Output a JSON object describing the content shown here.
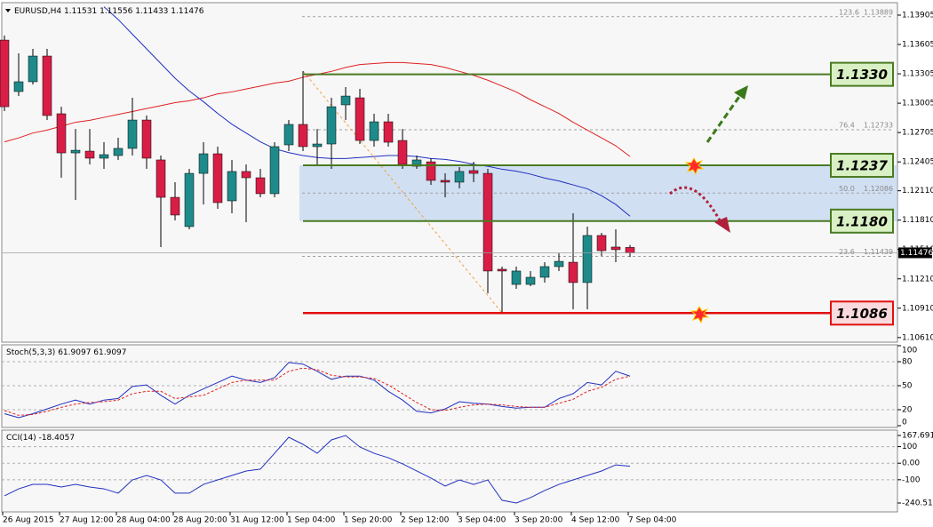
{
  "chart_data": [
    {
      "type": "candlestick",
      "symbol": "EURUSD,H4",
      "categories": [
        "26 Aug 2015",
        null,
        null,
        null,
        "27 Aug 12:00",
        null,
        null,
        null,
        "28 Aug 04:00",
        null,
        null,
        null,
        "28 Aug 20:00",
        null,
        null,
        null,
        "31 Aug 12:00",
        null,
        null,
        null,
        "1 Sep 04:00",
        null,
        null,
        null,
        "1 Sep 20:00",
        null,
        null,
        null,
        "2 Sep 12:00",
        null,
        null,
        null,
        "3 Sep 04:00",
        null,
        null,
        null,
        "3 Sep 20:00",
        null,
        null,
        null,
        "4 Sep 12:00",
        null,
        null,
        null,
        "7 Sep 04:00"
      ],
      "open": [
        1.1365,
        1.13124,
        1.13224,
        1.13487,
        1.12897,
        1.12497,
        1.12515,
        1.12443,
        1.1247,
        1.12543,
        1.12833,
        1.12425,
        1.12043,
        1.11744,
        1.12288,
        1.12488,
        1.12007,
        1.12307,
        1.12243,
        1.1208,
        1.12579,
        1.12788,
        1.12561,
        1.12588,
        1.12988,
        1.1306,
        1.12624,
        1.12815,
        1.12624,
        1.12361,
        1.12406,
        1.12216,
        1.12198,
        1.12316,
        1.12288,
        1.11308,
        1.11153,
        1.11153,
        1.11226,
        1.11335,
        1.1138,
        1.11172,
        1.11653,
        1.11535,
        1.11531
      ],
      "high": [
        1.13696,
        1.13514,
        1.1356,
        1.1356,
        1.12969,
        1.12742,
        1.12742,
        1.12606,
        1.12652,
        1.1306,
        1.12879,
        1.1247,
        1.12198,
        1.12334,
        1.12606,
        1.12561,
        1.12425,
        1.12379,
        1.12334,
        1.12606,
        1.12833,
        1.13333,
        1.12742,
        1.1306,
        1.13169,
        1.13151,
        1.12897,
        1.12897,
        1.12742,
        1.1247,
        1.12443,
        1.12288,
        1.12352,
        1.12406,
        1.12334,
        1.11335,
        1.11335,
        1.1129,
        1.1138,
        1.11471,
        1.1188,
        1.11744,
        1.1168,
        1.11716,
        1.11556
      ],
      "low": [
        1.12924,
        1.13078,
        1.13196,
        1.12833,
        1.12243,
        1.12016,
        1.12379,
        1.12334,
        1.12425,
        1.1247,
        1.12334,
        1.11535,
        1.11807,
        1.11716,
        1.11971,
        1.11925,
        1.1188,
        1.11789,
        1.12043,
        1.12043,
        1.12515,
        1.12515,
        1.12379,
        1.12334,
        1.12833,
        1.12588,
        1.12561,
        1.12561,
        1.12334,
        1.12334,
        1.1217,
        1.12043,
        1.12134,
        1.12198,
        1.11063,
        1.10863,
        1.11108,
        1.11135,
        1.11172,
        1.1129,
        1.10899,
        1.10899,
        1.11444,
        1.1138,
        1.11433
      ],
      "close": [
        1.12969,
        1.13224,
        1.13487,
        1.12879,
        1.12497,
        1.12524,
        1.12443,
        1.12479,
        1.12543,
        1.12833,
        1.12443,
        1.12043,
        1.11862,
        1.12288,
        1.12488,
        1.11989,
        1.12307,
        1.12243,
        1.1208,
        1.12561,
        1.12788,
        1.12561,
        1.12588,
        1.12969,
        1.13078,
        1.12624,
        1.12815,
        1.12606,
        1.12379,
        1.12425,
        1.12216,
        1.12198,
        1.12307,
        1.12288,
        1.1129,
        1.1129,
        1.1129,
        1.11226,
        1.11335,
        1.11389,
        1.11172,
        1.11653,
        1.11498,
        1.11508,
        1.11476
      ],
      "up_color": "#1f8a8a",
      "down_color": "#d81e46",
      "series": [
        {
          "color": "#e02020",
          "values": [
            1.1261,
            1.1265,
            1.127,
            1.1273,
            1.1277,
            1.1281,
            1.1283,
            1.1286,
            1.1289,
            1.1292,
            1.1295,
            1.1298,
            1.1301,
            1.1303,
            1.1306,
            1.131,
            1.1312,
            1.1315,
            1.1318,
            1.1321,
            1.1323,
            1.1327,
            1.133,
            1.1333,
            1.1337,
            1.134,
            1.1341,
            1.1342,
            1.1342,
            1.1341,
            1.134,
            1.1337,
            1.1333,
            1.1329,
            1.1324,
            1.1318,
            1.1312,
            1.1304,
            1.1297,
            1.129,
            1.1281,
            1.1273,
            1.1265,
            1.1257,
            1.1246
          ]
        },
        {
          "color": "#2030c0",
          "values": [
            null,
            null,
            null,
            null,
            null,
            null,
            null,
            1.1399,
            1.1386,
            1.1371,
            1.1356,
            1.1341,
            1.1326,
            1.1313,
            1.1302,
            1.129,
            1.1279,
            1.127,
            1.1261,
            1.1254,
            1.125,
            1.1247,
            1.1245,
            1.1244,
            1.1244,
            1.1245,
            1.1246,
            1.1247,
            1.1247,
            1.1246,
            1.1244,
            1.1243,
            1.1241,
            1.1238,
            1.1236,
            1.1233,
            1.1231,
            1.1228,
            1.1224,
            1.1221,
            1.1217,
            1.1213,
            1.1206,
            1.1197,
            1.1185
          ]
        }
      ],
      "ylim": [
        1.10563,
        1.14014
      ],
      "yticks": [
        1.13905,
        1.13605,
        1.13305,
        1.13005,
        1.12705,
        1.12405,
        {
          "value": 1.1211,
          "label": "1.12110"
        },
        {
          "value": 1.1181,
          "label": "1.11810"
        },
        {
          "value": 1.1151,
          "label": "1.11510"
        },
        {
          "value": 1.1121,
          "label": "1.11210"
        },
        {
          "value": 1.1091,
          "label": "1.10910"
        },
        {
          "value": 1.1061,
          "label": "1.10610"
        }
      ],
      "levels": [
        {
          "value": 1.133,
          "label": "1.1330",
          "color": "#4a7a22",
          "fill": "#d9f0c4"
        },
        {
          "value": 1.1237,
          "label": "1.1237",
          "color": "#4a7a22",
          "fill": "#d9f0c4"
        },
        {
          "value": 1.118,
          "label": "1.1180",
          "color": "#4a7a22",
          "fill": "#d9f0c4"
        },
        {
          "value": 1.1086,
          "label": "1.1086",
          "color": "#e01010",
          "fill": "#fadadd"
        }
      ],
      "fibo": [
        {
          "level": "123.6",
          "price": 1.13889
        },
        {
          "level": "76.4",
          "price": 1.12733
        },
        {
          "level": "50.0",
          "price": 1.12086
        },
        {
          "level": "23.6",
          "price": 1.11439
        }
      ]
    },
    {
      "type": "line",
      "title": "Stoch(5,3,3)",
      "series": [
        {
          "color": "#2030c0",
          "values": [
            15,
            10,
            15,
            21,
            27,
            32,
            27,
            32,
            34,
            49,
            51,
            38,
            27,
            38,
            46,
            54,
            62,
            57,
            54,
            60,
            79,
            77,
            68,
            58,
            62,
            62,
            57,
            43,
            32,
            18,
            16,
            21,
            30,
            28,
            27,
            24,
            22,
            23,
            23,
            34,
            40,
            54,
            51,
            68,
            61.9097
          ]
        },
        {
          "color": "#e02020",
          "dash": true,
          "values": [
            19,
            13,
            14,
            18,
            23,
            27,
            29,
            30,
            32,
            40,
            43,
            43,
            34,
            36,
            38,
            46,
            54,
            57,
            57,
            57,
            68,
            72,
            70,
            63,
            61,
            61,
            59,
            51,
            40,
            29,
            20,
            19,
            23,
            26,
            27,
            26,
            24,
            23,
            23,
            28,
            33,
            43,
            48,
            58,
            61.9097
          ]
        }
      ],
      "ylim": [
        0,
        100
      ],
      "yticks": [
        100,
        80,
        50,
        20,
        0
      ],
      "grid": [
        80,
        50,
        20
      ]
    },
    {
      "type": "line",
      "title": "CCI(14)",
      "series": [
        {
          "color": "#2030c0",
          "values": [
            -197,
            -155,
            -128,
            -128,
            -144,
            -128,
            -144,
            -155,
            -181,
            -101,
            -74,
            -101,
            -181,
            -181,
            -128,
            -101,
            -74,
            -47,
            -36,
            60,
            157,
            114,
            60,
            141,
            167.6914,
            98,
            60,
            33,
            -4,
            -47,
            -90,
            -138,
            -101,
            -128,
            -101,
            -224,
            -240.514,
            -208,
            -165,
            -128,
            -101,
            -74,
            -47,
            -10,
            -18.4057
          ]
        }
      ],
      "ylim": [
        -240.514,
        167.6914
      ],
      "yticks": [
        167.6914,
        100,
        {
          "value": 0,
          "label": "0.00"
        },
        -100,
        -240.514
      ],
      "grid": [
        100,
        0,
        -100
      ]
    }
  ]
}
